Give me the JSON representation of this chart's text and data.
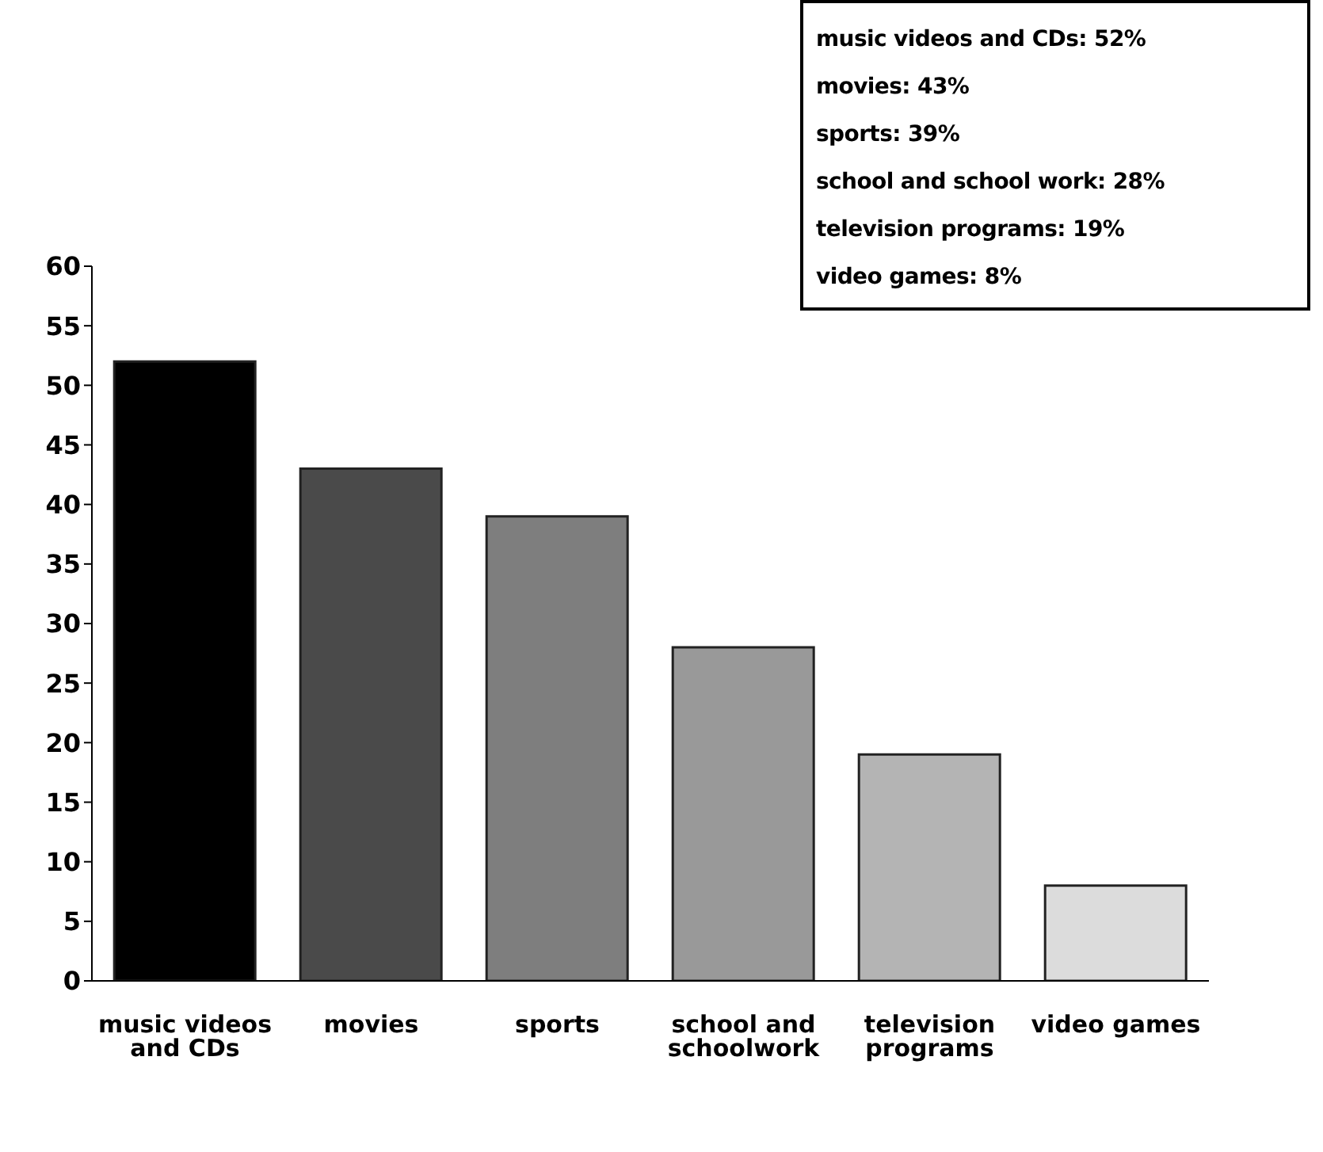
{
  "chart_data": {
    "type": "bar",
    "categories": [
      "music videos and CDs",
      "movies",
      "sports",
      "school and schoolwork",
      "television programs",
      "video games"
    ],
    "values": [
      52,
      43,
      39,
      28,
      19,
      8
    ],
    "colors": [
      "#000000",
      "#4a4a4a",
      "#7e7e7e",
      "#999999",
      "#b4b4b4",
      "#dcdcdc"
    ],
    "ylim": [
      0,
      60
    ],
    "yticks": [
      0,
      5,
      10,
      15,
      20,
      25,
      30,
      35,
      40,
      45,
      50,
      55,
      60
    ],
    "grid": false,
    "annotations": [
      "music videos and CDs: 52%",
      "movies: 43%",
      "sports: 39%",
      "school and school work: 28%",
      "television programs: 19%",
      "video games: 8%"
    ]
  }
}
